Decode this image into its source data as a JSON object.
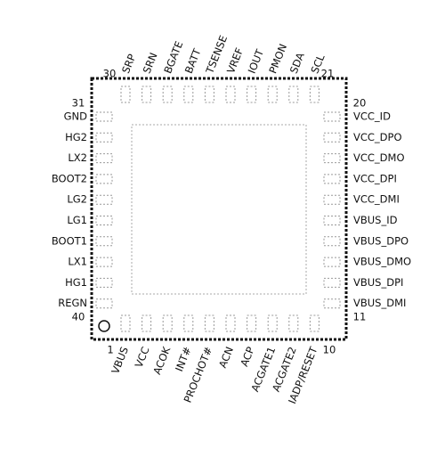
{
  "pins": {
    "top": [
      "SRP",
      "SRN",
      "BGATE",
      "BATT",
      "TSENSE",
      "VREF",
      "IOUT",
      "PMON",
      "SDA",
      "SCL"
    ],
    "left": [
      "GND",
      "HG2",
      "LX2",
      "BOOT2",
      "LG2",
      "LG1",
      "BOOT1",
      "LX1",
      "HG1",
      "REGN"
    ],
    "right": [
      "VCC_ID",
      "VCC_DPO",
      "VCC_DMO",
      "VCC_DPI",
      "VCC_DMI",
      "VBUS_ID",
      "VBUS_DPO",
      "VBUS_DMO",
      "VBUS_DPI",
      "VBUS_DMI"
    ],
    "bottom": [
      "VBUS",
      "VCC",
      "ACOK",
      "INT#",
      "PROCHOT#",
      "ACN",
      "ACP",
      "ACGATE1",
      "ACGATE2",
      "IADP/RESET"
    ]
  },
  "pin_numbers": {
    "top_left": "30",
    "top_right": "21",
    "left_top": "31",
    "right_top": "20",
    "left_bottom": "40",
    "right_bottom": "11",
    "bottom_left": "1",
    "bottom_right": "10"
  }
}
